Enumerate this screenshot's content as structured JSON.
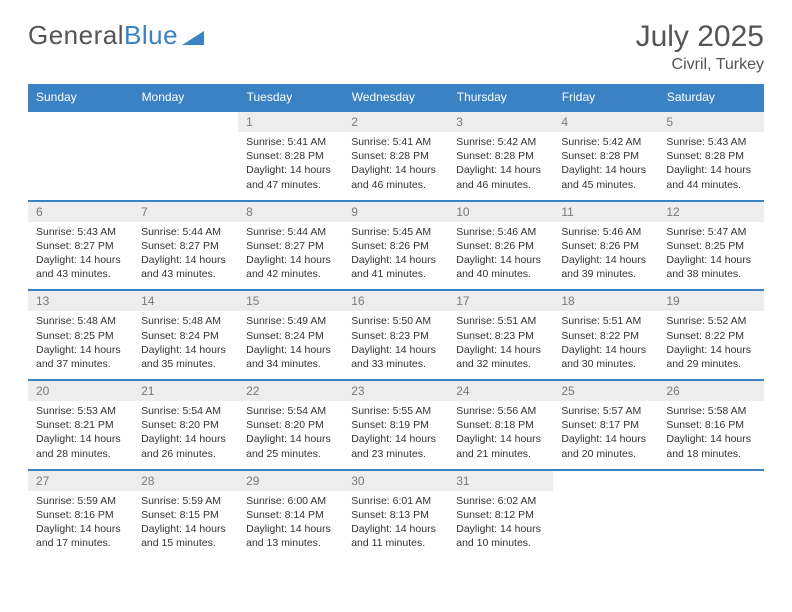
{
  "logo": {
    "text1": "General",
    "text2": "Blue"
  },
  "title": {
    "month": "July 2025",
    "location": "Civril, Turkey"
  },
  "colors": {
    "header_bg": "#3b82c4",
    "header_text": "#ffffff",
    "daynum_bg": "#ededed",
    "daynum_text": "#7a7a7a",
    "border": "#3b82c4",
    "body_text": "#333333"
  },
  "weekdays": [
    "Sunday",
    "Monday",
    "Tuesday",
    "Wednesday",
    "Thursday",
    "Friday",
    "Saturday"
  ],
  "days": [
    {
      "n": "",
      "sr": "",
      "ss": "",
      "d1": "",
      "d2": ""
    },
    {
      "n": "",
      "sr": "",
      "ss": "",
      "d1": "",
      "d2": ""
    },
    {
      "n": "1",
      "sr": "Sunrise: 5:41 AM",
      "ss": "Sunset: 8:28 PM",
      "d1": "Daylight: 14 hours",
      "d2": "and 47 minutes."
    },
    {
      "n": "2",
      "sr": "Sunrise: 5:41 AM",
      "ss": "Sunset: 8:28 PM",
      "d1": "Daylight: 14 hours",
      "d2": "and 46 minutes."
    },
    {
      "n": "3",
      "sr": "Sunrise: 5:42 AM",
      "ss": "Sunset: 8:28 PM",
      "d1": "Daylight: 14 hours",
      "d2": "and 46 minutes."
    },
    {
      "n": "4",
      "sr": "Sunrise: 5:42 AM",
      "ss": "Sunset: 8:28 PM",
      "d1": "Daylight: 14 hours",
      "d2": "and 45 minutes."
    },
    {
      "n": "5",
      "sr": "Sunrise: 5:43 AM",
      "ss": "Sunset: 8:28 PM",
      "d1": "Daylight: 14 hours",
      "d2": "and 44 minutes."
    },
    {
      "n": "6",
      "sr": "Sunrise: 5:43 AM",
      "ss": "Sunset: 8:27 PM",
      "d1": "Daylight: 14 hours",
      "d2": "and 43 minutes."
    },
    {
      "n": "7",
      "sr": "Sunrise: 5:44 AM",
      "ss": "Sunset: 8:27 PM",
      "d1": "Daylight: 14 hours",
      "d2": "and 43 minutes."
    },
    {
      "n": "8",
      "sr": "Sunrise: 5:44 AM",
      "ss": "Sunset: 8:27 PM",
      "d1": "Daylight: 14 hours",
      "d2": "and 42 minutes."
    },
    {
      "n": "9",
      "sr": "Sunrise: 5:45 AM",
      "ss": "Sunset: 8:26 PM",
      "d1": "Daylight: 14 hours",
      "d2": "and 41 minutes."
    },
    {
      "n": "10",
      "sr": "Sunrise: 5:46 AM",
      "ss": "Sunset: 8:26 PM",
      "d1": "Daylight: 14 hours",
      "d2": "and 40 minutes."
    },
    {
      "n": "11",
      "sr": "Sunrise: 5:46 AM",
      "ss": "Sunset: 8:26 PM",
      "d1": "Daylight: 14 hours",
      "d2": "and 39 minutes."
    },
    {
      "n": "12",
      "sr": "Sunrise: 5:47 AM",
      "ss": "Sunset: 8:25 PM",
      "d1": "Daylight: 14 hours",
      "d2": "and 38 minutes."
    },
    {
      "n": "13",
      "sr": "Sunrise: 5:48 AM",
      "ss": "Sunset: 8:25 PM",
      "d1": "Daylight: 14 hours",
      "d2": "and 37 minutes."
    },
    {
      "n": "14",
      "sr": "Sunrise: 5:48 AM",
      "ss": "Sunset: 8:24 PM",
      "d1": "Daylight: 14 hours",
      "d2": "and 35 minutes."
    },
    {
      "n": "15",
      "sr": "Sunrise: 5:49 AM",
      "ss": "Sunset: 8:24 PM",
      "d1": "Daylight: 14 hours",
      "d2": "and 34 minutes."
    },
    {
      "n": "16",
      "sr": "Sunrise: 5:50 AM",
      "ss": "Sunset: 8:23 PM",
      "d1": "Daylight: 14 hours",
      "d2": "and 33 minutes."
    },
    {
      "n": "17",
      "sr": "Sunrise: 5:51 AM",
      "ss": "Sunset: 8:23 PM",
      "d1": "Daylight: 14 hours",
      "d2": "and 32 minutes."
    },
    {
      "n": "18",
      "sr": "Sunrise: 5:51 AM",
      "ss": "Sunset: 8:22 PM",
      "d1": "Daylight: 14 hours",
      "d2": "and 30 minutes."
    },
    {
      "n": "19",
      "sr": "Sunrise: 5:52 AM",
      "ss": "Sunset: 8:22 PM",
      "d1": "Daylight: 14 hours",
      "d2": "and 29 minutes."
    },
    {
      "n": "20",
      "sr": "Sunrise: 5:53 AM",
      "ss": "Sunset: 8:21 PM",
      "d1": "Daylight: 14 hours",
      "d2": "and 28 minutes."
    },
    {
      "n": "21",
      "sr": "Sunrise: 5:54 AM",
      "ss": "Sunset: 8:20 PM",
      "d1": "Daylight: 14 hours",
      "d2": "and 26 minutes."
    },
    {
      "n": "22",
      "sr": "Sunrise: 5:54 AM",
      "ss": "Sunset: 8:20 PM",
      "d1": "Daylight: 14 hours",
      "d2": "and 25 minutes."
    },
    {
      "n": "23",
      "sr": "Sunrise: 5:55 AM",
      "ss": "Sunset: 8:19 PM",
      "d1": "Daylight: 14 hours",
      "d2": "and 23 minutes."
    },
    {
      "n": "24",
      "sr": "Sunrise: 5:56 AM",
      "ss": "Sunset: 8:18 PM",
      "d1": "Daylight: 14 hours",
      "d2": "and 21 minutes."
    },
    {
      "n": "25",
      "sr": "Sunrise: 5:57 AM",
      "ss": "Sunset: 8:17 PM",
      "d1": "Daylight: 14 hours",
      "d2": "and 20 minutes."
    },
    {
      "n": "26",
      "sr": "Sunrise: 5:58 AM",
      "ss": "Sunset: 8:16 PM",
      "d1": "Daylight: 14 hours",
      "d2": "and 18 minutes."
    },
    {
      "n": "27",
      "sr": "Sunrise: 5:59 AM",
      "ss": "Sunset: 8:16 PM",
      "d1": "Daylight: 14 hours",
      "d2": "and 17 minutes."
    },
    {
      "n": "28",
      "sr": "Sunrise: 5:59 AM",
      "ss": "Sunset: 8:15 PM",
      "d1": "Daylight: 14 hours",
      "d2": "and 15 minutes."
    },
    {
      "n": "29",
      "sr": "Sunrise: 6:00 AM",
      "ss": "Sunset: 8:14 PM",
      "d1": "Daylight: 14 hours",
      "d2": "and 13 minutes."
    },
    {
      "n": "30",
      "sr": "Sunrise: 6:01 AM",
      "ss": "Sunset: 8:13 PM",
      "d1": "Daylight: 14 hours",
      "d2": "and 11 minutes."
    },
    {
      "n": "31",
      "sr": "Sunrise: 6:02 AM",
      "ss": "Sunset: 8:12 PM",
      "d1": "Daylight: 14 hours",
      "d2": "and 10 minutes."
    },
    {
      "n": "",
      "sr": "",
      "ss": "",
      "d1": "",
      "d2": ""
    },
    {
      "n": "",
      "sr": "",
      "ss": "",
      "d1": "",
      "d2": ""
    }
  ]
}
